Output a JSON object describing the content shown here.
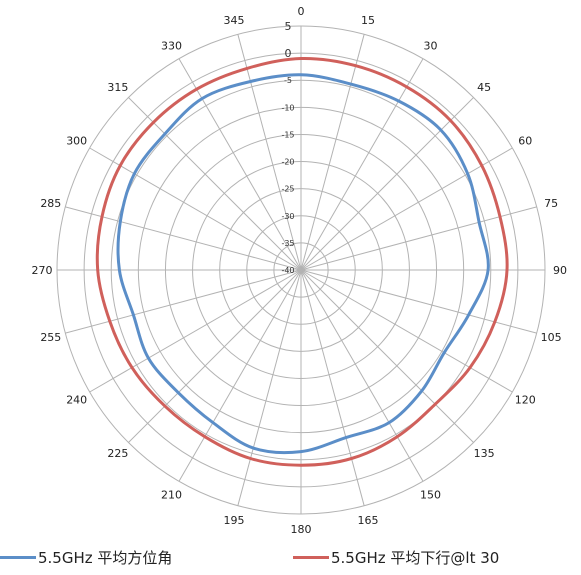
{
  "chart_data": {
    "type": "polar-line",
    "angle_ticks": [
      "0",
      "15",
      "30",
      "45",
      "60",
      "75",
      "90",
      "105",
      "120",
      "135",
      "150",
      "165",
      "180",
      "195",
      "210",
      "225",
      "240",
      "255",
      "270",
      "285",
      "300",
      "315",
      "330",
      "345"
    ],
    "radial_ticks": [
      "5",
      "0",
      "-5",
      "-10",
      "-15",
      "-20",
      "-25",
      "-30",
      "-35",
      "-40"
    ],
    "rlim": [
      -40,
      5
    ],
    "grid": true,
    "legend_position": "bottom",
    "series": [
      {
        "name": "5.5GHz 平均方位角",
        "color": "#5b8ec8",
        "angles": [
          0,
          15,
          30,
          45,
          60,
          75,
          90,
          105,
          120,
          135,
          150,
          165,
          180,
          195,
          210,
          225,
          240,
          255,
          270,
          285,
          300,
          315,
          330,
          345,
          360
        ],
        "values": [
          -4,
          -4.5,
          -4,
          -3.5,
          -4.5,
          -6,
          -5.5,
          -8,
          -9.5,
          -8.5,
          -7.5,
          -8,
          -6.5,
          -6,
          -7.5,
          -8,
          -7.5,
          -8,
          -6.5,
          -5.5,
          -4.5,
          -4.5,
          -3.5,
          -4,
          -4
        ]
      },
      {
        "name": "5.5GHz 平均下行@lt 30",
        "color": "#d0605b",
        "angles": [
          0,
          15,
          30,
          45,
          60,
          75,
          90,
          105,
          120,
          135,
          150,
          165,
          180,
          195,
          210,
          225,
          240,
          255,
          270,
          285,
          300,
          315,
          330,
          345,
          360
        ],
        "values": [
          -1,
          -1,
          -1,
          -1,
          -1.5,
          -2,
          -2,
          -3,
          -4,
          -5,
          -4.5,
          -4,
          -4,
          -4,
          -4.5,
          -4.5,
          -4,
          -3.5,
          -2.5,
          -2,
          -1.5,
          -1.5,
          -1.5,
          -1.5,
          -1
        ]
      }
    ]
  }
}
